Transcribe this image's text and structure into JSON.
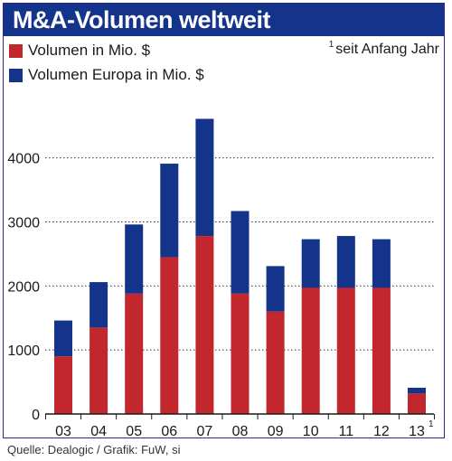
{
  "header": {
    "title": "M&A-Volumen weltweit"
  },
  "legend": [
    {
      "label": "Volumen in Mio. $",
      "color": "#c1272d"
    },
    {
      "label": "Volumen Europa in Mio. $",
      "color": "#14348c"
    }
  ],
  "footnote": {
    "marker": "1",
    "text": "seit Anfang Jahr"
  },
  "source": "Quelle: Dealogic / Grafik: FuW, si",
  "chart_data": {
    "type": "bar",
    "stacked": true,
    "categories": [
      "03",
      "04",
      "05",
      "06",
      "07",
      "08",
      "09",
      "10",
      "11",
      "12",
      "13"
    ],
    "category_footnotes": {
      "13": "1"
    },
    "series": [
      {
        "name": "Volumen in Mio. $",
        "color": "#c1272d",
        "values": [
          900,
          1350,
          1880,
          2450,
          2780,
          1880,
          1600,
          1970,
          1970,
          1970,
          320
        ]
      },
      {
        "name": "Volumen Europa in Mio. $",
        "color": "#14348c",
        "values": [
          560,
          710,
          1080,
          1460,
          1830,
          1290,
          710,
          760,
          810,
          760,
          90
        ]
      }
    ],
    "yticks": [
      0,
      1000,
      2000,
      3000,
      4000
    ],
    "ylim": [
      0,
      4800
    ],
    "grid": true,
    "legend_position": "top-left"
  }
}
